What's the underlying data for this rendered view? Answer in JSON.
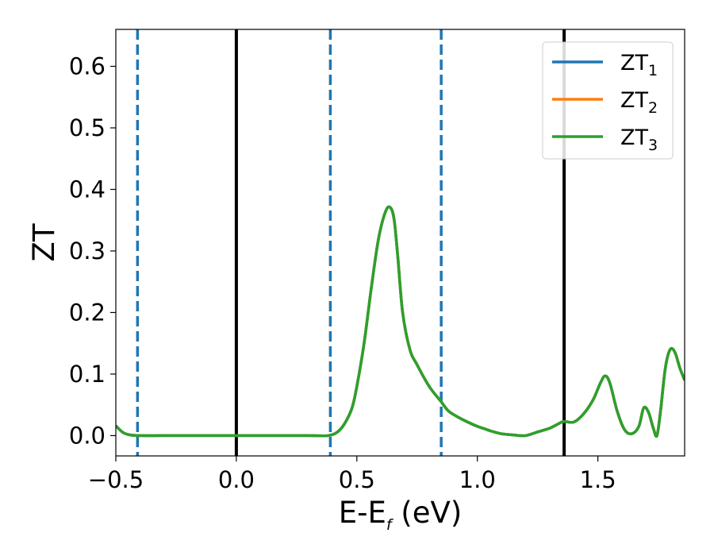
{
  "chart_data": {
    "type": "line",
    "xlabel": "E-E",
    "xlabel_sub": "f",
    "xlabel_unit": " (eV)",
    "ylabel": "ZT",
    "xlim": [
      -0.5,
      1.86
    ],
    "ylim": [
      -0.033,
      0.66
    ],
    "grid": false,
    "legend_position": "top-right",
    "x_ticks": [
      -0.5,
      0.0,
      0.5,
      1.0,
      1.5
    ],
    "x_tick_labels": [
      "−0.5",
      "0.0",
      "0.5",
      "1.0",
      "1.5"
    ],
    "y_ticks": [
      0.0,
      0.1,
      0.2,
      0.3,
      0.4,
      0.5,
      0.6
    ],
    "y_tick_labels": [
      "0.0",
      "0.1",
      "0.2",
      "0.3",
      "0.4",
      "0.5",
      "0.6"
    ],
    "vertical_lines": [
      {
        "x": -0.41,
        "style": "dashed",
        "color": "#1f77b4"
      },
      {
        "x": 0.0,
        "style": "solid",
        "color": "#000000"
      },
      {
        "x": 0.39,
        "style": "dashed",
        "color": "#1f77b4"
      },
      {
        "x": 0.85,
        "style": "dashed",
        "color": "#1f77b4"
      },
      {
        "x": 1.36,
        "style": "solid",
        "color": "#000000"
      }
    ],
    "series": [
      {
        "name": "ZT",
        "name_sub": "1",
        "color": "#1f77b4",
        "values_same_as": "ZT3"
      },
      {
        "name": "ZT",
        "name_sub": "2",
        "color": "#ff7f0e",
        "values_same_as": "ZT3"
      },
      {
        "name": "ZT",
        "name_sub": "3",
        "color": "#2ca02c"
      }
    ],
    "x": [
      -0.5,
      -0.47,
      -0.44,
      -0.4,
      -0.3,
      -0.1,
      0.1,
      0.3,
      0.38,
      0.42,
      0.45,
      0.48,
      0.5,
      0.53,
      0.56,
      0.59,
      0.62,
      0.64,
      0.655,
      0.67,
      0.69,
      0.72,
      0.75,
      0.8,
      0.85,
      0.88,
      0.92,
      0.96,
      1.0,
      1.03,
      1.06,
      1.1,
      1.15,
      1.2,
      1.25,
      1.3,
      1.34,
      1.36,
      1.4,
      1.44,
      1.48,
      1.51,
      1.53,
      1.55,
      1.58,
      1.61,
      1.64,
      1.67,
      1.69,
      1.71,
      1.73,
      1.745,
      1.76,
      1.78,
      1.8,
      1.82,
      1.84,
      1.86
    ],
    "y": [
      0.016,
      0.005,
      0.001,
      0.0,
      0.0,
      0.0,
      0.0,
      0.0,
      0.0,
      0.006,
      0.02,
      0.045,
      0.08,
      0.15,
      0.24,
      0.32,
      0.365,
      0.37,
      0.35,
      0.29,
      0.2,
      0.14,
      0.115,
      0.08,
      0.055,
      0.04,
      0.03,
      0.022,
      0.015,
      0.011,
      0.007,
      0.003,
      0.001,
      0.0,
      0.006,
      0.012,
      0.02,
      0.023,
      0.022,
      0.035,
      0.058,
      0.085,
      0.097,
      0.085,
      0.04,
      0.01,
      0.003,
      0.015,
      0.045,
      0.038,
      0.012,
      0.0,
      0.04,
      0.11,
      0.14,
      0.135,
      0.11,
      0.09
    ]
  }
}
